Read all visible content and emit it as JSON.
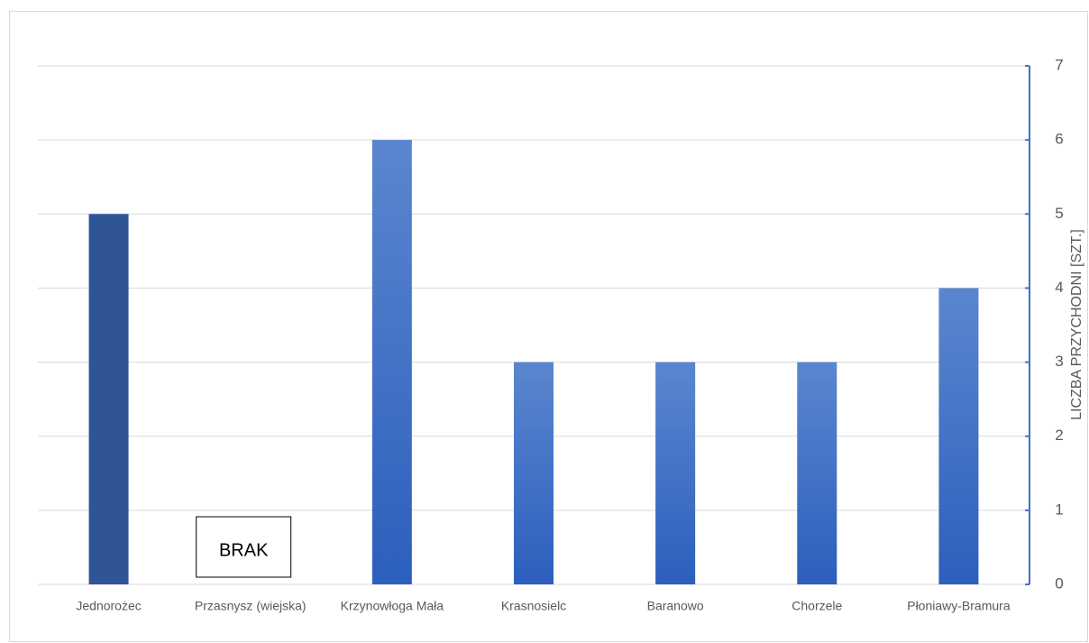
{
  "chart_data": {
    "type": "bar",
    "y_label": "LICZBA PRZYCHODNI [SZT.]",
    "categories": [
      "Jednorożec",
      "Przasnysz (wiejska)",
      "Krzynowłoga Mała",
      "Krasnosielc",
      "Baranowo",
      "Chorzele",
      "Płoniawy-Bramura"
    ],
    "values": [
      5,
      null,
      6,
      3,
      3,
      3,
      4
    ],
    "colors": [
      "#2f5597",
      "#4472c4",
      "#4472c4",
      "#4472c4",
      "#4472c4",
      "#4472c4",
      "#4472c4"
    ],
    "annotation": "BRAK",
    "ylim": [
      0,
      7
    ],
    "yticks": [
      0,
      1,
      2,
      3,
      4,
      5,
      6,
      7
    ],
    "grid": true,
    "y_axis_side": "right"
  }
}
